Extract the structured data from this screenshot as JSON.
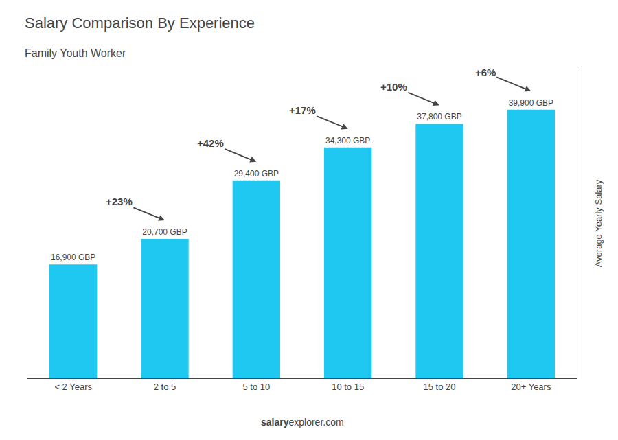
{
  "chart_data": {
    "type": "bar",
    "title": "Salary Comparison By Experience",
    "subtitle": "Family Youth Worker",
    "categories": [
      "< 2 Years",
      "2 to 5",
      "5 to 10",
      "10 to 15",
      "15 to 20",
      "20+ Years"
    ],
    "values": [
      16900,
      20700,
      29400,
      34300,
      37800,
      39900
    ],
    "value_labels": [
      "16,900 GBP",
      "20,700 GBP",
      "29,400 GBP",
      "34,300 GBP",
      "37,800 GBP",
      "39,900 GBP"
    ],
    "data_labels": true,
    "color": "#1EC8F0",
    "ylabel": "Average Yearly Salary",
    "ylim": [
      0,
      46000
    ],
    "tick_labels": "x",
    "grid": false,
    "annotations": [
      "+23%",
      "+42%",
      "+17%",
      "+10%",
      "+6%"
    ],
    "footer": [
      "salary",
      "explorer.com"
    ]
  }
}
